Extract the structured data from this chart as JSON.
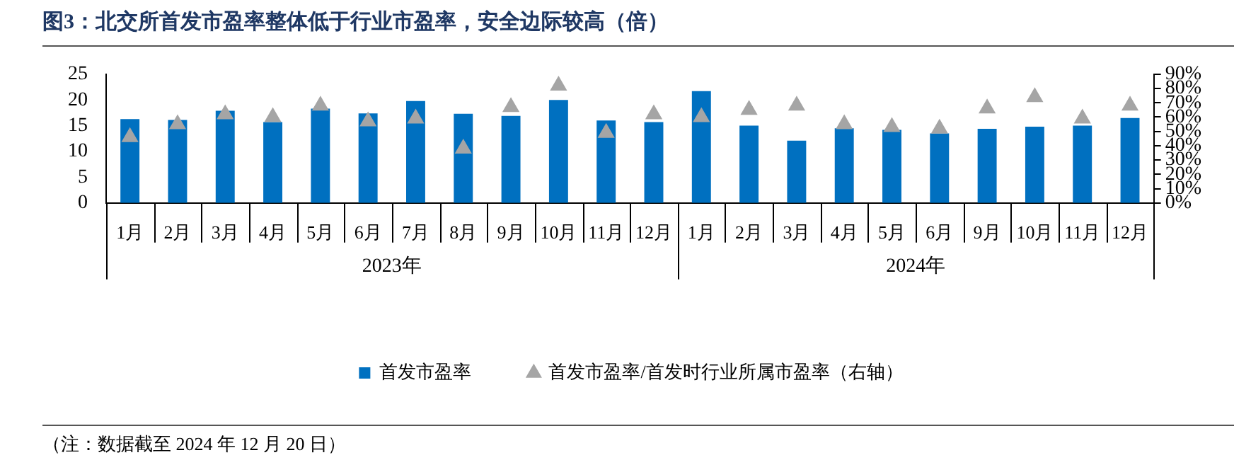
{
  "chart_data": {
    "type": "bar",
    "title": "图3：北交所首发市盈率整体低于行业市盈率，安全边际较高（倍）",
    "categories": [
      "1月",
      "2月",
      "3月",
      "4月",
      "5月",
      "6月",
      "7月",
      "8月",
      "9月",
      "10月",
      "11月",
      "12月",
      "1月",
      "2月",
      "3月",
      "4月",
      "5月",
      "6月",
      "9月",
      "10月",
      "11月",
      "12月"
    ],
    "series": [
      {
        "name": "首发市盈率",
        "color": "#0070c0",
        "values": [
          16.3,
          16.1,
          17.9,
          15.7,
          18.3,
          17.4,
          19.8,
          17.3,
          16.9,
          20.0,
          16.0,
          15.7,
          21.7,
          15.0,
          12.1,
          14.5,
          14.2,
          13.5,
          14.4,
          14.8,
          15.0,
          16.5
        ]
      },
      {
        "name": "首发市盈率/首发时行业所属市盈率（右轴）",
        "type": "scatter",
        "axis": "y2",
        "marker": "triangle",
        "color": "#a5a5a5",
        "values": [
          46,
          55,
          62,
          60,
          68,
          57,
          59,
          38,
          67,
          82,
          49,
          62,
          60,
          65,
          68,
          55,
          53,
          52,
          66,
          74,
          59,
          68
        ]
      }
    ],
    "ylim": [
      0,
      25
    ],
    "yticks": [
      0,
      5,
      10,
      15,
      20,
      25
    ],
    "y2lim": [
      0,
      90
    ],
    "y2ticks": [
      {
        "value": 0,
        "label": "0%"
      },
      {
        "value": 10,
        "label": "10%"
      },
      {
        "value": 20,
        "label": "20%"
      },
      {
        "value": 30,
        "label": "30%"
      },
      {
        "value": 40,
        "label": "40%"
      },
      {
        "value": 50,
        "label": "50%"
      },
      {
        "value": 60,
        "label": "60%"
      },
      {
        "value": 70,
        "label": "70%"
      },
      {
        "value": 80,
        "label": "80%"
      },
      {
        "value": 90,
        "label": "90%"
      }
    ],
    "annotations": [
      "2023年",
      "2024年",
      "（注：数据截至 2024 年 12 月 20 日）"
    ],
    "legend": "bottom",
    "grid": false
  }
}
